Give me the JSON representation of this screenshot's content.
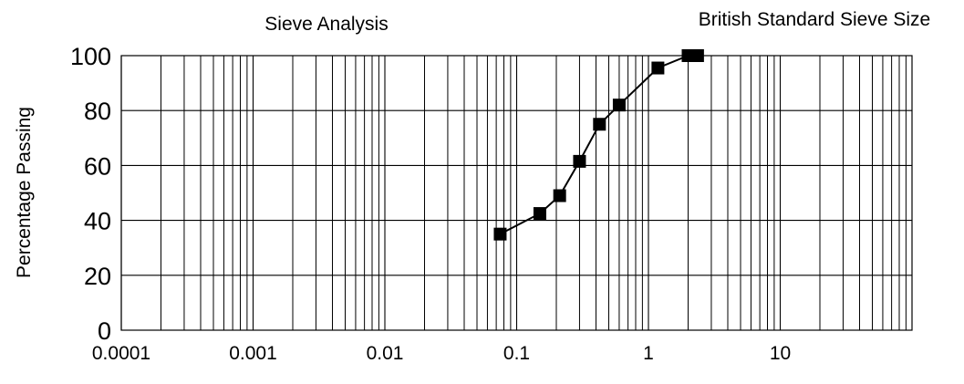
{
  "chart_data": {
    "type": "scatter",
    "title": "Sieve Analysis",
    "subtitle": "British Standard Sieve Size",
    "xlabel": "",
    "ylabel": "Percentage Passing",
    "x_scale": "log",
    "xlim": [
      0.0001,
      100
    ],
    "ylim": [
      0,
      100
    ],
    "x_ticks": [
      0.0001,
      0.001,
      0.01,
      0.1,
      1,
      10
    ],
    "x_tick_labels": [
      "0.0001",
      "0.001",
      "0.01",
      "0.1",
      "1",
      "10"
    ],
    "y_ticks": [
      0,
      20,
      40,
      60,
      80,
      100
    ],
    "y_tick_labels": [
      "0",
      "20",
      "40",
      "60",
      "80",
      "100"
    ],
    "grid": true,
    "legend": "none",
    "line_color": "#000000",
    "marker": "square",
    "series": [
      {
        "x": [
          0.075,
          0.15,
          0.212,
          0.3,
          0.425,
          0.6,
          1.18,
          2.0,
          2.36
        ],
        "values": [
          35,
          42.5,
          49,
          61.5,
          75,
          82,
          95.5,
          100,
          100
        ]
      }
    ]
  }
}
